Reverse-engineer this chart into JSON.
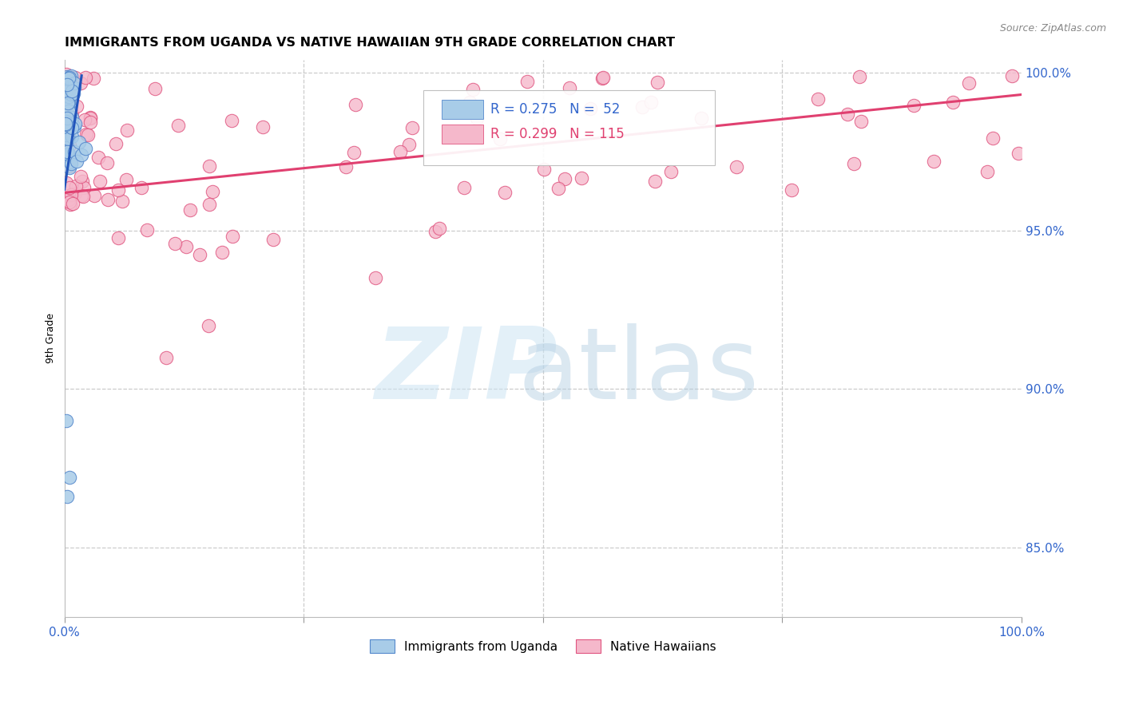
{
  "title": "IMMIGRANTS FROM UGANDA VS NATIVE HAWAIIAN 9TH GRADE CORRELATION CHART",
  "source_text": "Source: ZipAtlas.com",
  "ylabel": "9th Grade",
  "legend_label1": "Immigrants from Uganda",
  "legend_label2": "Native Hawaiians",
  "blue_color": "#a8cce8",
  "pink_color": "#f5b8cb",
  "blue_edge_color": "#5588cc",
  "pink_edge_color": "#e05580",
  "blue_line_color": "#2255bb",
  "pink_line_color": "#e04070",
  "right_tick_color": "#3366cc",
  "bottom_tick_color": "#3366cc",
  "ymin": 0.828,
  "ymax": 1.004,
  "xmin": 0.0,
  "xmax": 1.0,
  "title_fontsize": 11.5,
  "tick_fontsize": 11,
  "ylabel_fontsize": 9
}
